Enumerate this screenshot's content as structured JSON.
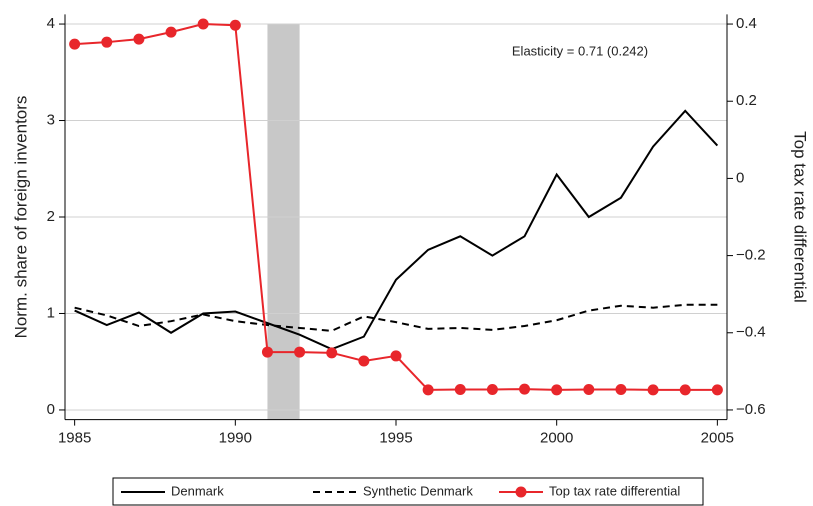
{
  "chart_data": {
    "type": "line",
    "x": [
      1985,
      1986,
      1987,
      1988,
      1989,
      1990,
      1991,
      1992,
      1993,
      1994,
      1995,
      1996,
      1997,
      1998,
      1999,
      2000,
      2001,
      2002,
      2003,
      2004,
      2005
    ],
    "series": [
      {
        "name": "Denmark",
        "color": "#000000",
        "dash": "solid",
        "marker": false,
        "values": [
          1.03,
          0.88,
          1.01,
          0.8,
          1.0,
          1.02,
          0.9,
          0.78,
          0.63,
          0.76,
          1.35,
          1.66,
          1.8,
          1.6,
          1.8,
          2.44,
          2.0,
          2.2,
          2.73,
          3.1,
          2.74
        ]
      },
      {
        "name": "Synthetic Denmark",
        "color": "#000000",
        "dash": "dashed",
        "marker": false,
        "values": [
          1.06,
          0.98,
          0.87,
          0.92,
          0.99,
          0.92,
          0.88,
          0.85,
          0.82,
          0.97,
          0.91,
          0.84,
          0.85,
          0.83,
          0.87,
          0.93,
          1.03,
          1.08,
          1.06,
          1.09,
          1.09
        ]
      },
      {
        "name": "Top tax rate differential",
        "color": "#e8262b",
        "dash": "solid",
        "marker": true,
        "axis": "y2",
        "values": [
          0.348,
          0.353,
          0.361,
          0.379,
          0.4,
          0.397,
          -0.45,
          -0.45,
          -0.452,
          -0.473,
          -0.46,
          -0.548,
          -0.547,
          -0.547,
          -0.546,
          -0.548,
          -0.547,
          -0.547,
          -0.548,
          -0.548,
          -0.548
        ]
      }
    ],
    "ylabel": "Norm. share of foreign inventors",
    "y2label": "Top tax rate differential",
    "xlim": [
      1984.7,
      2005.3
    ],
    "xticks": [
      1985,
      1990,
      1995,
      2000,
      2005
    ],
    "ylim": [
      -0.1,
      4.1
    ],
    "yticks": [
      0,
      1,
      2,
      3,
      4
    ],
    "y2lim": [
      -0.625,
      0.425
    ],
    "y2ticks": [
      {
        "value": 0.4,
        "label": "0.4"
      },
      {
        "value": 0.2,
        "label": "0.2"
      },
      0,
      {
        "value": -0.2,
        "label": "−0.2"
      },
      {
        "value": -0.4,
        "label": "−0.4"
      },
      {
        "value": -0.6,
        "label": "−0.6"
      }
    ],
    "shade": [
      1991,
      1992
    ],
    "shade_color": "#c8c8c8",
    "annotation": "Elasticity = 0.71 (0.242)",
    "grid": true,
    "legend": "bottom"
  }
}
